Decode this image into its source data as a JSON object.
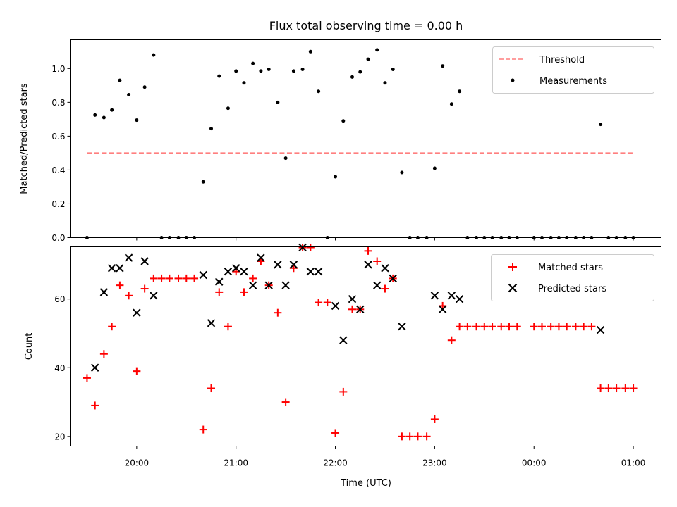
{
  "chart_data": [
    {
      "type": "scatter",
      "title": "Flux total observing time = 0.00 h",
      "xlabel": "",
      "ylabel": "Matched/Predicted stars",
      "xlim": [
        19.33,
        25.28
      ],
      "ylim": [
        0,
        1.17
      ],
      "yticks": [
        0.0,
        0.2,
        0.4,
        0.6,
        0.8,
        1.0
      ],
      "ytick_labels": [
        "0.0",
        "0.2",
        "0.4",
        "0.6",
        "0.8",
        "1.0"
      ],
      "legend_position": "upper right",
      "threshold": {
        "name": "Threshold",
        "value": 0.5,
        "x_range": [
          19.5,
          25.0
        ],
        "color": "#ff7f7f"
      },
      "series": [
        {
          "name": "Measurements",
          "marker": "dot",
          "color": "#000000",
          "x": [
            19.5,
            19.58,
            19.67,
            19.75,
            19.83,
            19.92,
            20.0,
            20.08,
            20.17,
            20.25,
            20.33,
            20.42,
            20.5,
            20.58,
            20.67,
            20.75,
            20.83,
            20.92,
            21.0,
            21.08,
            21.17,
            21.25,
            21.33,
            21.42,
            21.5,
            21.58,
            21.67,
            21.75,
            21.83,
            21.92,
            22.0,
            22.08,
            22.17,
            22.25,
            22.33,
            22.42,
            22.5,
            22.58,
            22.67,
            22.75,
            22.83,
            22.92,
            23.0,
            23.08,
            23.17,
            23.25,
            23.33,
            23.42,
            23.5,
            23.58,
            23.67,
            23.75,
            23.83,
            24.0,
            24.08,
            24.17,
            24.25,
            24.33,
            24.42,
            24.5,
            24.58,
            24.67,
            24.75,
            24.83,
            24.92,
            25.0
          ],
          "y": [
            0.0,
            0.725,
            0.71,
            0.755,
            0.93,
            0.845,
            0.695,
            0.89,
            1.08,
            0.0,
            0.0,
            0.0,
            0.0,
            0.0,
            0.33,
            0.645,
            0.955,
            0.765,
            0.985,
            0.915,
            1.03,
            0.985,
            0.995,
            0.8,
            0.47,
            0.985,
            0.995,
            1.1,
            0.865,
            0.0,
            0.36,
            0.69,
            0.95,
            0.98,
            1.055,
            1.11,
            0.915,
            0.995,
            0.385,
            0.0,
            0.0,
            0.0,
            0.41,
            1.015,
            0.79,
            0.865,
            0.0,
            0.0,
            0.0,
            0.0,
            0.0,
            0.0,
            0.0,
            0.0,
            0.0,
            0.0,
            0.0,
            0.0,
            0.0,
            0.0,
            0.0,
            0.67,
            0.0,
            0.0,
            0.0,
            0.0
          ]
        }
      ]
    },
    {
      "type": "scatter",
      "title": "",
      "xlabel": "Time (UTC)",
      "ylabel": "Count",
      "xlim": [
        19.33,
        25.28
      ],
      "ylim": [
        17.2,
        75.2
      ],
      "yticks": [
        20,
        40,
        60
      ],
      "ytick_labels": [
        "20",
        "40",
        "60"
      ],
      "xticks": [
        20,
        21,
        22,
        23,
        24,
        25
      ],
      "xtick_labels": [
        "20:00",
        "21:00",
        "22:00",
        "23:00",
        "00:00",
        "01:00"
      ],
      "legend_position": "upper right",
      "series": [
        {
          "name": "Matched stars",
          "marker": "plus",
          "color": "#ff0000",
          "x": [
            19.5,
            19.58,
            19.67,
            19.75,
            19.83,
            19.92,
            20.0,
            20.08,
            20.17,
            20.25,
            20.33,
            20.42,
            20.5,
            20.58,
            20.67,
            20.75,
            20.83,
            20.92,
            21.0,
            21.08,
            21.17,
            21.25,
            21.33,
            21.42,
            21.5,
            21.58,
            21.67,
            21.75,
            21.83,
            21.92,
            22.0,
            22.08,
            22.17,
            22.25,
            22.33,
            22.42,
            22.5,
            22.58,
            22.67,
            22.75,
            22.83,
            22.92,
            23.0,
            23.08,
            23.17,
            23.25,
            23.33,
            23.42,
            23.5,
            23.58,
            23.67,
            23.75,
            23.83,
            24.0,
            24.08,
            24.17,
            24.25,
            24.33,
            24.42,
            24.5,
            24.58,
            24.67,
            24.75,
            24.83,
            24.92,
            25.0
          ],
          "y": [
            37,
            29,
            44,
            52,
            64,
            61,
            39,
            63,
            66,
            66,
            66,
            66,
            66,
            66,
            22,
            34,
            62,
            52,
            68,
            62,
            66,
            71,
            64,
            56,
            30,
            69,
            75,
            75,
            59,
            59,
            21,
            33,
            57,
            57,
            74,
            71,
            63,
            66,
            20,
            20,
            20,
            20,
            25,
            58,
            48,
            52,
            52,
            52,
            52,
            52,
            52,
            52,
            52,
            52,
            52,
            52,
            52,
            52,
            52,
            52,
            52,
            34,
            34,
            34,
            34,
            34
          ]
        },
        {
          "name": "Predicted stars",
          "marker": "x",
          "color": "#000000",
          "x": [
            19.58,
            19.67,
            19.75,
            19.83,
            19.92,
            20.0,
            20.08,
            20.17,
            20.67,
            20.75,
            20.83,
            20.92,
            21.0,
            21.08,
            21.17,
            21.25,
            21.33,
            21.42,
            21.5,
            21.58,
            21.67,
            21.75,
            21.83,
            22.0,
            22.08,
            22.17,
            22.25,
            22.33,
            22.42,
            22.5,
            22.58,
            22.67,
            23.0,
            23.08,
            23.17,
            23.25,
            24.67
          ],
          "y": [
            40,
            62,
            69,
            69,
            72,
            56,
            71,
            61,
            67,
            53,
            65,
            68,
            69,
            68,
            64,
            72,
            64,
            70,
            64,
            70,
            75,
            68,
            68,
            58,
            48,
            60,
            57,
            70,
            64,
            69,
            66,
            52,
            61,
            57,
            61,
            60,
            51
          ]
        }
      ]
    }
  ]
}
